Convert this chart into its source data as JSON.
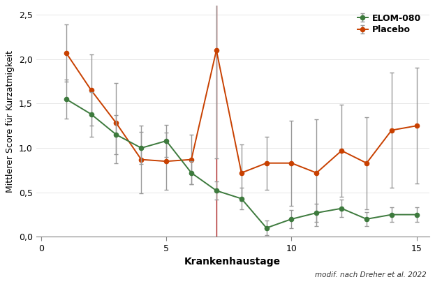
{
  "elom_x": [
    1,
    2,
    3,
    4,
    5,
    6,
    7,
    8,
    9,
    10,
    11,
    12,
    13,
    14,
    15
  ],
  "elom_y": [
    1.55,
    1.38,
    1.15,
    1.0,
    1.08,
    0.72,
    0.52,
    0.43,
    0.1,
    0.2,
    0.27,
    0.32,
    0.2,
    0.25,
    0.25
  ],
  "elom_err": [
    0.22,
    0.25,
    0.22,
    0.18,
    0.18,
    0.13,
    0.1,
    0.12,
    0.08,
    0.1,
    0.1,
    0.1,
    0.08,
    0.08,
    0.08
  ],
  "placebo_x": [
    1,
    2,
    3,
    4,
    5,
    6,
    7,
    8,
    9,
    10,
    11,
    12,
    13,
    14,
    15
  ],
  "placebo_y": [
    2.07,
    1.65,
    1.28,
    0.87,
    0.85,
    0.87,
    2.1,
    0.72,
    0.83,
    0.83,
    0.72,
    0.97,
    0.83,
    1.2,
    1.25
  ],
  "placebo_err": [
    0.32,
    0.4,
    0.45,
    0.38,
    0.32,
    0.28,
    1.22,
    0.32,
    0.3,
    0.48,
    0.6,
    0.52,
    0.52,
    0.65,
    0.65
  ],
  "elom_color": "#3d7a3d",
  "placebo_color": "#c84000",
  "vline_x": 7,
  "vline_color": "#aa2222",
  "xlabel": "Krankenhaustage",
  "ylabel": "Mittlerer Score für Kurzatmigkeit",
  "legend_elom": "ELOM-080",
  "legend_placebo": "Placebo",
  "annotation": "modif. nach Dreher et al. 2022",
  "xlim": [
    -0.2,
    15.5
  ],
  "ylim": [
    0.0,
    2.6
  ],
  "yticks": [
    0.0,
    0.5,
    1.0,
    1.5,
    2.0,
    2.5
  ],
  "ytick_labels": [
    "0,0",
    "0,5",
    "1,0",
    "1,5",
    "2,0",
    "2,5"
  ],
  "xticks": [
    0,
    5,
    10,
    15
  ],
  "err_color": "#999999",
  "bg_color": "#ffffff"
}
